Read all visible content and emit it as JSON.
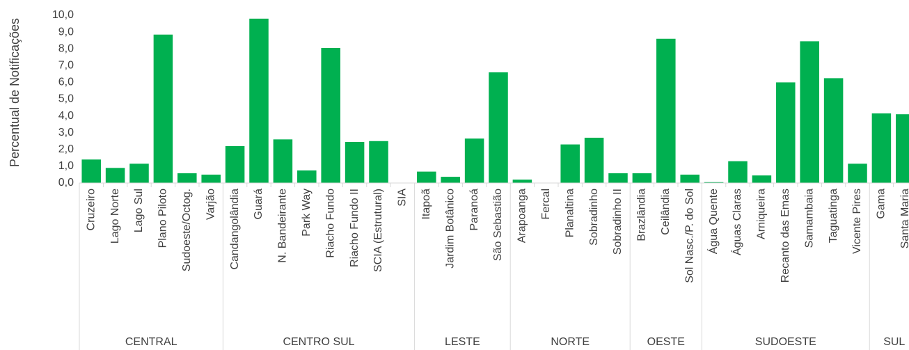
{
  "chart_data": {
    "type": "bar",
    "y_label": "Percentual de Notificações",
    "color": "#00b050",
    "ylim": [
      0,
      10
    ],
    "yticks": [
      {
        "value": 0,
        "label": "0,0"
      },
      {
        "value": 1,
        "label": "1,0"
      },
      {
        "value": 2,
        "label": "2,0"
      },
      {
        "value": 3,
        "label": "3,0"
      },
      {
        "value": 4,
        "label": "4,0"
      },
      {
        "value": 5,
        "label": "5,0"
      },
      {
        "value": 6,
        "label": "6,0"
      },
      {
        "value": 7,
        "label": "7,0"
      },
      {
        "value": 8,
        "label": "8,0"
      },
      {
        "value": 9,
        "label": "9,0"
      },
      {
        "value": 10,
        "label": "10,0"
      }
    ],
    "groups": [
      {
        "name": "CENTRAL",
        "categories": [
          "Cruzeiro",
          "Lago Norte",
          "Lago Sul",
          "Plano Piloto",
          "Sudoeste/Octog.",
          "Varjão"
        ],
        "values": [
          1.4,
          0.9,
          1.15,
          8.85,
          0.58,
          0.5
        ]
      },
      {
        "name": "CENTRO SUL",
        "categories": [
          "Candangolândia",
          "Guará",
          "N. Bandeirante",
          "Park Way",
          "Riacho Fundo",
          "Riacho Fundo II",
          "SCIA (Estrutural)",
          "SIA"
        ],
        "values": [
          2.2,
          9.8,
          2.6,
          0.75,
          8.05,
          2.45,
          2.5,
          0
        ]
      },
      {
        "name": "LESTE",
        "categories": [
          "Itapoã",
          "Jardim Botânico",
          "Paranoá",
          "São Sebastião"
        ],
        "values": [
          0.68,
          0.37,
          2.65,
          6.6
        ]
      },
      {
        "name": "NORTE",
        "categories": [
          "Arapoanga",
          "Fercal",
          "Planaltina",
          "Sobradinho",
          "Sobradinho II"
        ],
        "values": [
          0.2,
          0,
          2.3,
          2.7,
          0.58
        ]
      },
      {
        "name": "OESTE",
        "categories": [
          "Brazlândia",
          "Ceilândia",
          "Sol Nasc./P. do Sol"
        ],
        "values": [
          0.58,
          8.6,
          0.5
        ]
      },
      {
        "name": "SUDOESTE",
        "categories": [
          "Água Quente",
          "Águas Claras",
          "Arniqueira",
          "Recanto das Emas",
          "Samambaia",
          "Taguatinga",
          "Vicente Pires"
        ],
        "values": [
          0.05,
          1.3,
          0.45,
          6.0,
          8.45,
          6.25,
          1.15
        ]
      },
      {
        "name": "SUL",
        "categories": [
          "Gama",
          "Santa Maria"
        ],
        "values": [
          4.15,
          4.1
        ]
      }
    ]
  }
}
